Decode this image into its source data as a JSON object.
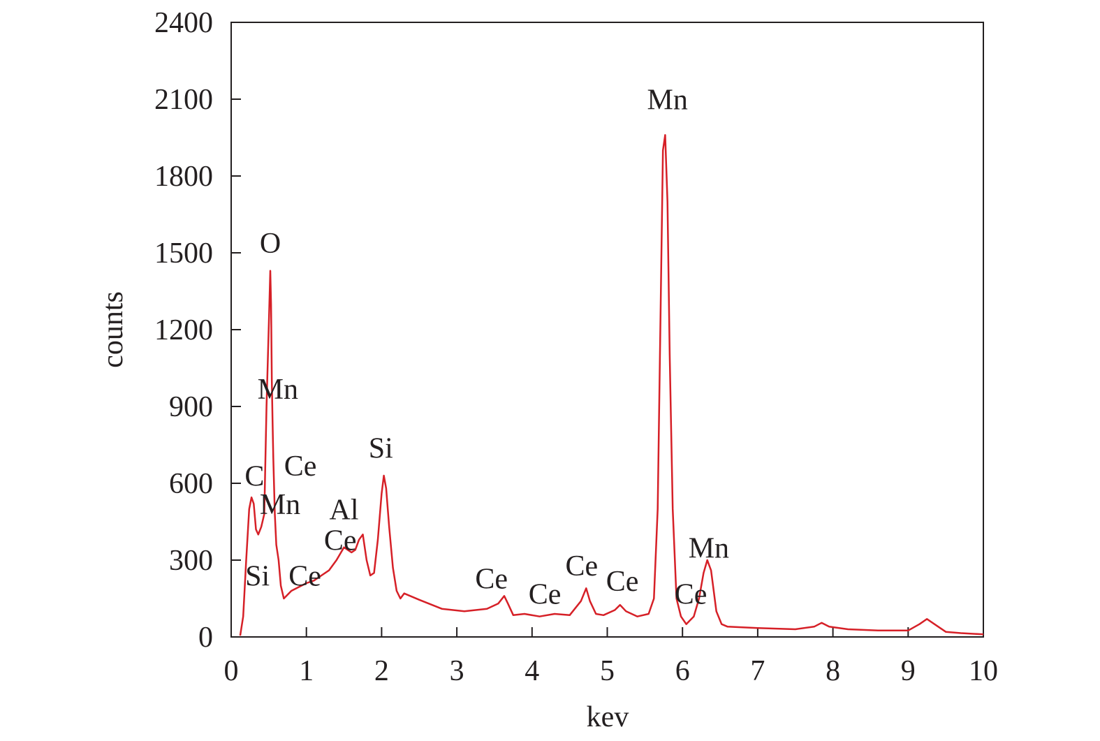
{
  "chart_data": {
    "type": "line",
    "title": "",
    "xlabel": "kev",
    "ylabel": "counts",
    "xlim": [
      0,
      10
    ],
    "ylim": [
      0,
      2400
    ],
    "xticks": [
      0,
      1,
      2,
      3,
      4,
      5,
      6,
      7,
      8,
      9,
      10
    ],
    "yticks": [
      0,
      300,
      600,
      900,
      1200,
      1500,
      1800,
      2100,
      2400
    ],
    "grid": false,
    "legend": "none",
    "colors": {
      "line": "#d62027",
      "axis": "#231f20"
    },
    "series": [
      {
        "x": [
          0.12,
          0.16,
          0.2,
          0.24,
          0.27,
          0.3,
          0.33,
          0.36,
          0.4,
          0.44,
          0.47,
          0.5,
          0.52,
          0.53,
          0.54,
          0.55,
          0.56,
          0.58,
          0.6,
          0.63,
          0.66,
          0.7,
          0.75,
          0.8,
          0.9,
          1.0,
          1.1,
          1.2,
          1.3,
          1.4,
          1.5,
          1.6,
          1.65,
          1.7,
          1.75,
          1.8,
          1.85,
          1.9,
          1.95,
          2.0,
          2.03,
          2.06,
          2.1,
          2.15,
          2.2,
          2.25,
          2.3,
          2.5,
          2.8,
          3.1,
          3.4,
          3.55,
          3.63,
          3.68,
          3.75,
          3.9,
          4.1,
          4.3,
          4.5,
          4.65,
          4.72,
          4.77,
          4.85,
          4.95,
          5.1,
          5.17,
          5.25,
          5.4,
          5.55,
          5.62,
          5.67,
          5.71,
          5.74,
          5.77,
          5.8,
          5.83,
          5.87,
          5.92,
          5.98,
          6.05,
          6.15,
          6.22,
          6.28,
          6.33,
          6.38,
          6.45,
          6.52,
          6.6,
          7.0,
          7.5,
          7.75,
          7.85,
          7.95,
          8.2,
          8.6,
          9.0,
          9.15,
          9.25,
          9.35,
          9.5,
          9.7,
          10.0
        ],
        "y": [
          5,
          80,
          300,
          500,
          545,
          520,
          420,
          400,
          430,
          480,
          900,
          1220,
          1430,
          1300,
          1000,
          850,
          700,
          480,
          360,
          300,
          200,
          150,
          165,
          180,
          195,
          210,
          220,
          240,
          260,
          300,
          350,
          330,
          340,
          380,
          400,
          300,
          240,
          250,
          380,
          560,
          630,
          580,
          430,
          270,
          180,
          150,
          170,
          145,
          110,
          100,
          110,
          130,
          160,
          130,
          85,
          90,
          80,
          90,
          85,
          140,
          190,
          140,
          90,
          85,
          105,
          125,
          100,
          80,
          90,
          150,
          500,
          1300,
          1900,
          1960,
          1700,
          1100,
          500,
          150,
          80,
          50,
          80,
          150,
          250,
          300,
          260,
          100,
          50,
          40,
          35,
          30,
          40,
          55,
          40,
          30,
          25,
          25,
          50,
          70,
          50,
          20,
          15,
          10
        ]
      }
    ],
    "annotations": [
      {
        "text": "O",
        "x": 0.52,
        "y": 1500
      },
      {
        "text": "Mn",
        "x": 0.62,
        "y": 930
      },
      {
        "text": "C",
        "x": 0.31,
        "y": 590
      },
      {
        "text": "Ce",
        "x": 0.92,
        "y": 630
      },
      {
        "text": "Mn",
        "x": 0.65,
        "y": 480
      },
      {
        "text": "Al",
        "x": 1.5,
        "y": 460
      },
      {
        "text": "Ce",
        "x": 1.45,
        "y": 340
      },
      {
        "text": "Si",
        "x": 1.99,
        "y": 700
      },
      {
        "text": "Si",
        "x": 0.35,
        "y": 200
      },
      {
        "text": "Ce",
        "x": 0.98,
        "y": 200
      },
      {
        "text": "Ce",
        "x": 3.46,
        "y": 190
      },
      {
        "text": "Ce",
        "x": 4.17,
        "y": 130
      },
      {
        "text": "Ce",
        "x": 4.66,
        "y": 240
      },
      {
        "text": "Ce",
        "x": 5.2,
        "y": 180
      },
      {
        "text": "Mn",
        "x": 5.8,
        "y": 2060
      },
      {
        "text": "Mn",
        "x": 6.35,
        "y": 310
      },
      {
        "text": "Ce",
        "x": 6.11,
        "y": 130
      }
    ]
  }
}
